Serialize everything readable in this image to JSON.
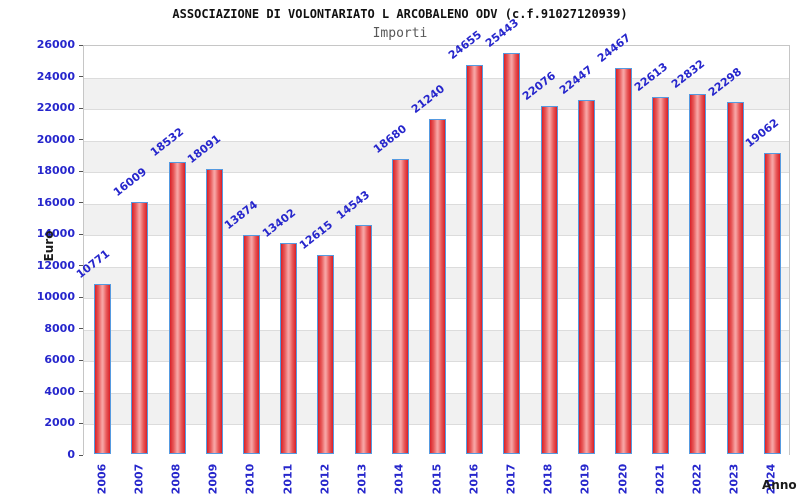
{
  "chart_data": {
    "type": "bar",
    "title": "ASSOCIAZIONE DI VOLONTARIATO L ARCOBALENO ODV (c.f.91027120939)",
    "subtitle": "Importi",
    "xlabel": "Anno",
    "ylabel": "Euro",
    "categories": [
      "2006",
      "2007",
      "2008",
      "2009",
      "2010",
      "2011",
      "2012",
      "2013",
      "2014",
      "2015",
      "2016",
      "2017",
      "2018",
      "2019",
      "2020",
      "2021",
      "2022",
      "2023",
      "2024"
    ],
    "values": [
      10771,
      16009,
      18532,
      18091,
      13874,
      13402,
      12615,
      14543,
      18680,
      21240,
      24655,
      25443,
      22076,
      22447,
      24467,
      22613,
      22832,
      22298,
      19062
    ],
    "ylim": [
      0,
      26000
    ],
    "ytick_step": 2000,
    "yticks": [
      0,
      2000,
      4000,
      6000,
      8000,
      10000,
      12000,
      14000,
      16000,
      18000,
      20000,
      22000,
      24000,
      26000
    ],
    "legend": "none",
    "grid": "horizontal gridlines with alternating gray bands every 2000",
    "value_labels_rotation_deg": -38,
    "x_labels_rotation_deg": -90,
    "colors": {
      "label_blue": "#2626cc",
      "bar_border_blue": "#559ae0",
      "bar_red_dark": "#d92028",
      "bar_red_mid": "#e85b5b",
      "bar_red_light": "#f7a3a3",
      "band_gray": "#f1f1f1",
      "gridline_gray": "#dcdcdc",
      "plot_border_gray": "#c6c6c6",
      "title_black": "#111111",
      "subtitle_gray": "#585858"
    }
  }
}
